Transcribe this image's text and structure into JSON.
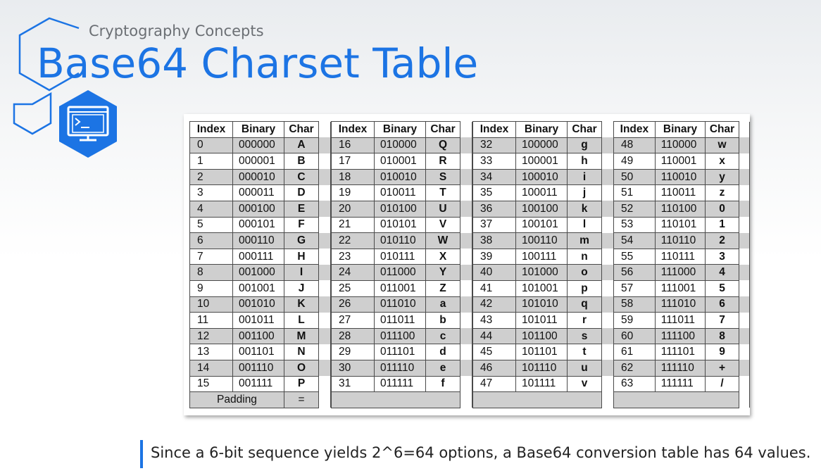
{
  "header": {
    "subtitle": "Cryptography Concepts",
    "title": "Base64 Charset Table"
  },
  "colors": {
    "accent": "#1c74e4",
    "shaded_row": "#cfcfcf"
  },
  "icons": {
    "badge": "terminal-window-icon"
  },
  "table": {
    "column_headers": [
      "Index",
      "Binary",
      "Char"
    ],
    "groups": [
      {
        "rows": [
          [
            "0",
            "000000",
            "A"
          ],
          [
            "1",
            "000001",
            "B"
          ],
          [
            "2",
            "000010",
            "C"
          ],
          [
            "3",
            "000011",
            "D"
          ],
          [
            "4",
            "000100",
            "E"
          ],
          [
            "5",
            "000101",
            "F"
          ],
          [
            "6",
            "000110",
            "G"
          ],
          [
            "7",
            "000111",
            "H"
          ],
          [
            "8",
            "001000",
            "I"
          ],
          [
            "9",
            "001001",
            "J"
          ],
          [
            "10",
            "001010",
            "K"
          ],
          [
            "11",
            "001011",
            "L"
          ],
          [
            "12",
            "001100",
            "M"
          ],
          [
            "13",
            "001101",
            "N"
          ],
          [
            "14",
            "001110",
            "O"
          ],
          [
            "15",
            "001111",
            "P"
          ]
        ]
      },
      {
        "rows": [
          [
            "16",
            "010000",
            "Q"
          ],
          [
            "17",
            "010001",
            "R"
          ],
          [
            "18",
            "010010",
            "S"
          ],
          [
            "19",
            "010011",
            "T"
          ],
          [
            "20",
            "010100",
            "U"
          ],
          [
            "21",
            "010101",
            "V"
          ],
          [
            "22",
            "010110",
            "W"
          ],
          [
            "23",
            "010111",
            "X"
          ],
          [
            "24",
            "011000",
            "Y"
          ],
          [
            "25",
            "011001",
            "Z"
          ],
          [
            "26",
            "011010",
            "a"
          ],
          [
            "27",
            "011011",
            "b"
          ],
          [
            "28",
            "011100",
            "c"
          ],
          [
            "29",
            "011101",
            "d"
          ],
          [
            "30",
            "011110",
            "e"
          ],
          [
            "31",
            "011111",
            "f"
          ]
        ]
      },
      {
        "rows": [
          [
            "32",
            "100000",
            "g"
          ],
          [
            "33",
            "100001",
            "h"
          ],
          [
            "34",
            "100010",
            "i"
          ],
          [
            "35",
            "100011",
            "j"
          ],
          [
            "36",
            "100100",
            "k"
          ],
          [
            "37",
            "100101",
            "l"
          ],
          [
            "38",
            "100110",
            "m"
          ],
          [
            "39",
            "100111",
            "n"
          ],
          [
            "40",
            "101000",
            "o"
          ],
          [
            "41",
            "101001",
            "p"
          ],
          [
            "42",
            "101010",
            "q"
          ],
          [
            "43",
            "101011",
            "r"
          ],
          [
            "44",
            "101100",
            "s"
          ],
          [
            "45",
            "101101",
            "t"
          ],
          [
            "46",
            "101110",
            "u"
          ],
          [
            "47",
            "101111",
            "v"
          ]
        ]
      },
      {
        "rows": [
          [
            "48",
            "110000",
            "w"
          ],
          [
            "49",
            "110001",
            "x"
          ],
          [
            "50",
            "110010",
            "y"
          ],
          [
            "51",
            "110011",
            "z"
          ],
          [
            "52",
            "110100",
            "0"
          ],
          [
            "53",
            "110101",
            "1"
          ],
          [
            "54",
            "110110",
            "2"
          ],
          [
            "55",
            "110111",
            "3"
          ],
          [
            "56",
            "111000",
            "4"
          ],
          [
            "57",
            "111001",
            "5"
          ],
          [
            "58",
            "111010",
            "6"
          ],
          [
            "59",
            "111011",
            "7"
          ],
          [
            "60",
            "111100",
            "8"
          ],
          [
            "61",
            "111101",
            "9"
          ],
          [
            "62",
            "111110",
            "+"
          ],
          [
            "63",
            "111111",
            "/"
          ]
        ]
      }
    ],
    "padding": {
      "label": "Padding",
      "char": "="
    }
  },
  "footer": {
    "text": "Since a 6-bit sequence yields 2^6=64 options, a Base64 conversion table has 64 values."
  }
}
